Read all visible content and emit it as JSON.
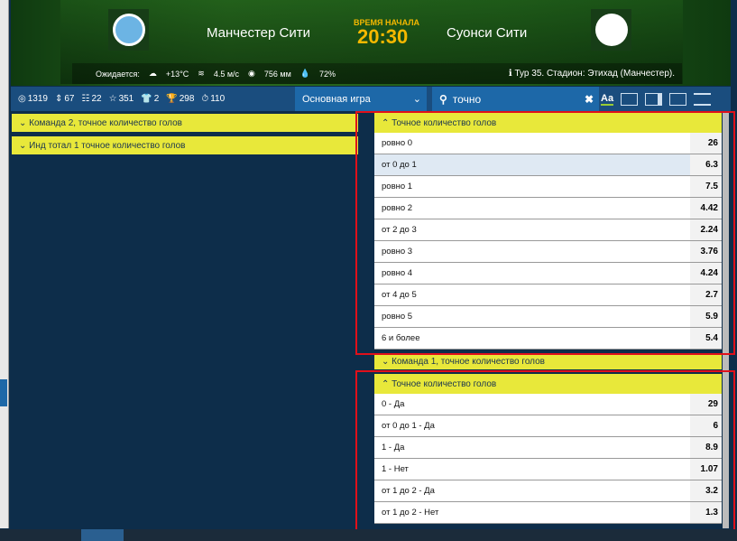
{
  "match": {
    "home": "Манчестер Сити",
    "away": "Суонси Сити",
    "time_label": "ВРЕМЯ НАЧАЛА",
    "time": "20:30"
  },
  "weather": {
    "label": "Ожидается:",
    "temp": "+13°C",
    "wind": "4.5 м/с",
    "pressure": "756 мм",
    "humidity": "72%",
    "info": "Тур 35. Стадион: Этихад (Манчестер)."
  },
  "toolbar": {
    "stats": [
      {
        "icon": "target-icon",
        "value": "1319"
      },
      {
        "icon": "updown-icon",
        "value": "67"
      },
      {
        "icon": "list-icon",
        "value": "22"
      },
      {
        "icon": "star-icon",
        "value": "351"
      },
      {
        "icon": "shirt-icon",
        "value": "2"
      },
      {
        "icon": "trophy-icon",
        "value": "298"
      },
      {
        "icon": "timer-icon",
        "value": "110"
      }
    ],
    "select": "Основная игра",
    "search": "точно",
    "font_btn": "Aa"
  },
  "left_groups": [
    "Команда 2, точное количество голов",
    "Инд тотал 1 точное количество голов"
  ],
  "panel1": {
    "title": "Точное количество голов",
    "rows": [
      {
        "label": "ровно 0",
        "odd": "26"
      },
      {
        "label": "от 0 до 1",
        "odd": "6.3"
      },
      {
        "label": "ровно 1",
        "odd": "7.5"
      },
      {
        "label": "ровно 2",
        "odd": "4.42"
      },
      {
        "label": "от 2 до 3",
        "odd": "2.24"
      },
      {
        "label": "ровно 3",
        "odd": "3.76"
      },
      {
        "label": "ровно 4",
        "odd": "4.24"
      },
      {
        "label": "от 4 до 5",
        "odd": "2.7"
      },
      {
        "label": "ровно 5",
        "odd": "5.9"
      },
      {
        "label": "6 и более",
        "odd": "5.4"
      }
    ]
  },
  "group2": "Команда 1, точное количество голов",
  "panel2": {
    "title": "Точное количество голов",
    "rows": [
      {
        "label": "0 - Да",
        "odd": "29"
      },
      {
        "label": "от 0 до 1 - Да",
        "odd": "6"
      },
      {
        "label": "1 - Да",
        "odd": "8.9"
      },
      {
        "label": "1 - Нет",
        "odd": "1.07"
      },
      {
        "label": "от 1 до 2 - Да",
        "odd": "3.2"
      },
      {
        "label": "от 1 до 2 - Нет",
        "odd": "1.3"
      }
    ]
  },
  "colors": {
    "accent": "#e8e83a",
    "highlight": "#e0101a",
    "nav": "#1d68a8"
  }
}
